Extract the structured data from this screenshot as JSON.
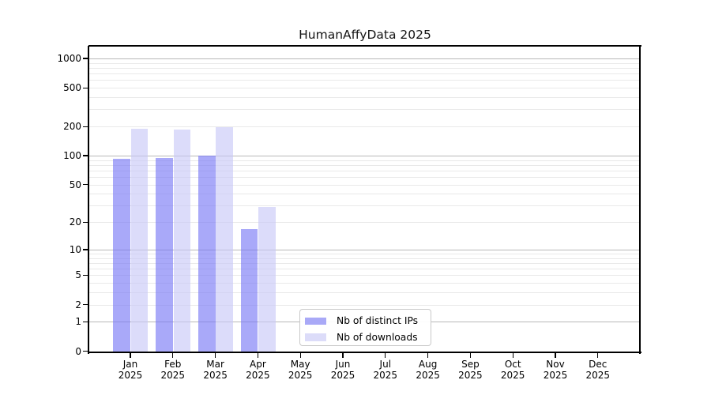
{
  "chart_data": {
    "type": "bar",
    "title": "HumanAffyData 2025",
    "x_tick_months": [
      "Jan",
      "Feb",
      "Mar",
      "Apr",
      "May",
      "Jun",
      "Jul",
      "Aug",
      "Sep",
      "Oct",
      "Nov",
      "Dec"
    ],
    "x_tick_year": "2025",
    "y_ticks": [
      0,
      1,
      2,
      5,
      10,
      20,
      50,
      100,
      200,
      500,
      1000
    ],
    "y_scale": "log10(value+1)",
    "ylim_top_value": 1320,
    "grid": "major and minor horizontal gridlines",
    "legend_position": "lower center-left inside plot",
    "series": [
      {
        "name": "Nb of distinct IPs",
        "color": "#a9a9f7",
        "fill_rgba": "rgba(116,116,246,0.62)",
        "values": [
          93,
          95,
          100,
          17,
          null,
          null,
          null,
          null,
          null,
          null,
          null,
          null
        ]
      },
      {
        "name": "Nb of downloads",
        "color": "#dcdcf9",
        "fill_rgba": "rgba(199,199,247,0.62)",
        "values": [
          190,
          185,
          197,
          29,
          null,
          null,
          null,
          null,
          null,
          null,
          null,
          null
        ]
      }
    ],
    "colors": {
      "major_grid": "#b8b8b8",
      "minor_grid": "#e9e9e9",
      "axis": "#000000",
      "background": "#ffffff"
    }
  }
}
